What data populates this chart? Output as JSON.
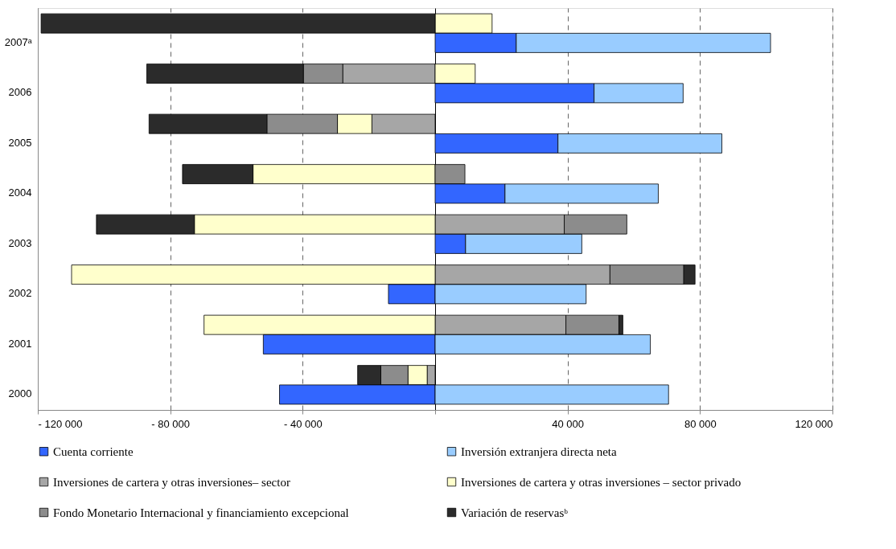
{
  "chart_data": {
    "type": "bar",
    "orientation": "horizontal",
    "stacked": true,
    "categories": [
      null,
      "2007ᵃ",
      null,
      "2006",
      null,
      "2005",
      null,
      "2004",
      null,
      "2003",
      null,
      "2002",
      null,
      "2001",
      null,
      "2000"
    ],
    "series": [
      {
        "name": "Cuenta corriente",
        "color": "#3366ff",
        "values": [
          null,
          24500,
          null,
          48000,
          null,
          37100,
          null,
          21100,
          null,
          9200,
          null,
          -14100,
          null,
          -51900,
          null,
          -47000
        ]
      },
      {
        "name": "Inversión extranjera directa neta",
        "color": "#99ccff",
        "values": [
          null,
          76800,
          null,
          26900,
          null,
          49500,
          null,
          46300,
          null,
          35100,
          null,
          45600,
          null,
          65000,
          null,
          70500
        ]
      },
      {
        "name": "Inversiones de cartera y otras inversiones– sector",
        "color": "#a6a6a6",
        "values": [
          null,
          null,
          -27900,
          null,
          -19100,
          null,
          null,
          null,
          39000,
          null,
          52800,
          null,
          39500,
          null,
          -2400,
          null
        ]
      },
      {
        "name": "Inversiones de cartera y otras inversiones – sector privado",
        "color": "#ffffcc",
        "values": [
          17200,
          null,
          12100,
          null,
          -10400,
          null,
          -55000,
          null,
          -72700,
          null,
          -109800,
          null,
          -69800,
          null,
          -5800,
          null
        ]
      },
      {
        "name": "Fondo Monetario Internacional y financiamiento excepcional",
        "color": "#8c8c8c",
        "values": [
          null,
          null,
          -11900,
          null,
          -21300,
          null,
          9000,
          null,
          18900,
          null,
          22300,
          null,
          16000,
          null,
          -8200,
          null
        ]
      },
      {
        "name": "Variación de reservasᵇ",
        "color": "#2b2b2b",
        "values": [
          -119000,
          null,
          -47300,
          null,
          -35600,
          null,
          -21300,
          null,
          -29600,
          null,
          3400,
          null,
          1200,
          null,
          -7000,
          null
        ]
      }
    ],
    "xlim": [
      -120000,
      120000
    ],
    "xticks": [
      {
        "value": -120000,
        "label": "- 120 000"
      },
      {
        "value": -80000,
        "label": "- 80 000"
      },
      {
        "value": -40000,
        "label": "- 40 000"
      },
      {
        "value": 0,
        "label": null
      },
      {
        "value": 40000,
        "label": "40 000"
      },
      {
        "value": 80000,
        "label": "80 000"
      },
      {
        "value": 120000,
        "label": "120 000"
      }
    ],
    "grid": "x",
    "legend": "bottom"
  }
}
